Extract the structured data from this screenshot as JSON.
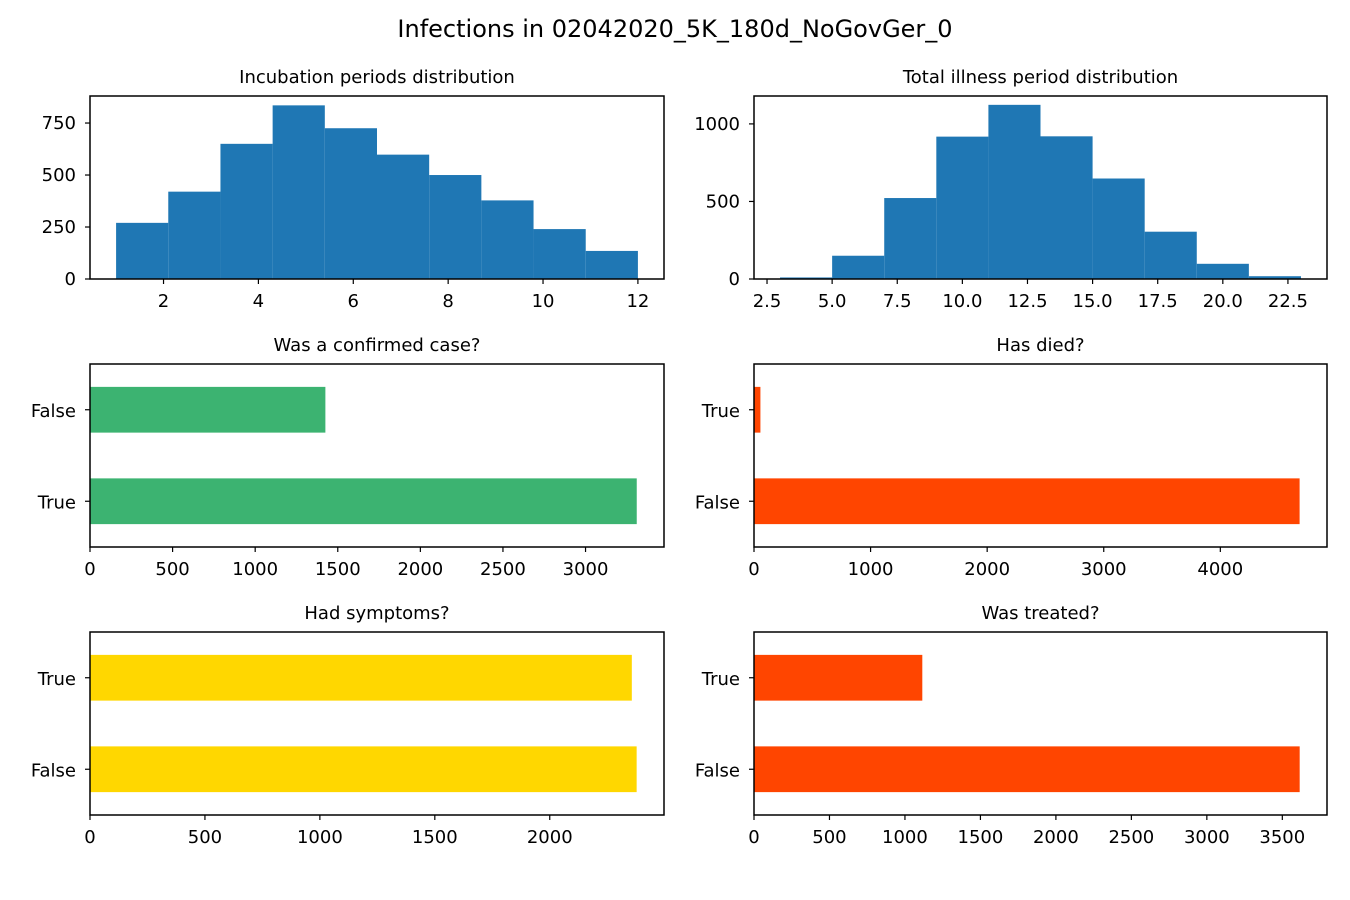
{
  "figure": {
    "title": "Infections in 02042020_5K_180d_NoGovGer_0"
  },
  "chart_data": [
    {
      "type": "bar",
      "subtype": "histogram",
      "title": "Incubation periods distribution",
      "color": "#1f77b4",
      "bin_edges": [
        1.0,
        2.1,
        3.2,
        4.3,
        5.4,
        6.5,
        7.6,
        8.7,
        9.8,
        10.9,
        12.0
      ],
      "values": [
        270,
        420,
        650,
        835,
        725,
        598,
        500,
        378,
        240,
        135
      ],
      "xlim": [
        0.45,
        12.55
      ],
      "ylim": [
        0,
        880
      ],
      "xticks": [
        2,
        4,
        6,
        8,
        10,
        12
      ],
      "yticks": [
        0,
        250,
        500,
        750
      ],
      "grid": false
    },
    {
      "type": "bar",
      "subtype": "histogram",
      "title": "Total illness period distribution",
      "color": "#1f77b4",
      "bin_edges": [
        3,
        5,
        7,
        9,
        11,
        13,
        15,
        17,
        19,
        21,
        23
      ],
      "values": [
        10,
        150,
        522,
        918,
        1123,
        920,
        648,
        305,
        98,
        18
      ],
      "xlim": [
        2.0,
        24.0
      ],
      "ylim": [
        0,
        1180
      ],
      "xticks": [
        2.5,
        5.0,
        7.5,
        10.0,
        12.5,
        15.0,
        17.5,
        20.0,
        22.5
      ],
      "yticks": [
        0,
        500,
        1000
      ],
      "grid": false
    },
    {
      "type": "bar",
      "orientation": "horizontal",
      "title": "Was a confirmed case?",
      "color": "#3cb371",
      "categories": [
        "True",
        "False"
      ],
      "values": [
        3310,
        1425
      ],
      "xlim": [
        0,
        3475
      ],
      "xticks": [
        0,
        500,
        1000,
        1500,
        2000,
        2500,
        3000
      ],
      "grid": false
    },
    {
      "type": "bar",
      "orientation": "horizontal",
      "title": "Has died?",
      "color": "#ff4500",
      "categories": [
        "False",
        "True"
      ],
      "values": [
        4680,
        55
      ],
      "xlim": [
        0,
        4915
      ],
      "xticks": [
        0,
        1000,
        2000,
        3000,
        4000
      ],
      "grid": false
    },
    {
      "type": "bar",
      "orientation": "horizontal",
      "title": "Had symptoms?",
      "color": "#ffd700",
      "categories": [
        "False",
        "True"
      ],
      "values": [
        2378,
        2357
      ],
      "xlim": [
        0,
        2497
      ],
      "xticks": [
        0,
        500,
        1000,
        1500,
        2000
      ],
      "grid": false
    },
    {
      "type": "bar",
      "orientation": "horizontal",
      "title": "Was treated?",
      "color": "#ff4500",
      "categories": [
        "False",
        "True"
      ],
      "values": [
        3615,
        1115
      ],
      "xlim": [
        0,
        3796
      ],
      "xticks": [
        0,
        500,
        1000,
        1500,
        2000,
        2500,
        3000,
        3500
      ],
      "grid": false
    }
  ]
}
